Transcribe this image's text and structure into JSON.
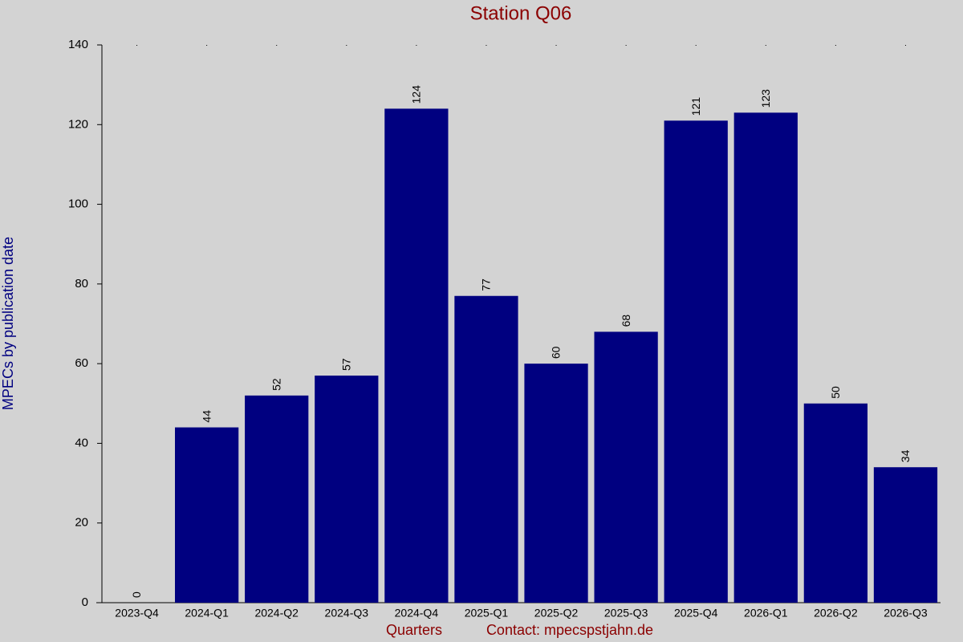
{
  "chart_data": {
    "type": "bar",
    "title": "Station Q06",
    "xlabel": "Quarters",
    "ylabel": "MPECs by publication date",
    "annotation": "Contact: mpecspstjahn.de",
    "categories": [
      "2023-Q4",
      "2024-Q1",
      "2024-Q2",
      "2024-Q3",
      "2024-Q4",
      "2025-Q1",
      "2025-Q2",
      "2025-Q3",
      "2025-Q4",
      "2026-Q1",
      "2026-Q2",
      "2026-Q3"
    ],
    "values": [
      0,
      44,
      52,
      57,
      124,
      77,
      60,
      68,
      121,
      123,
      50,
      34
    ],
    "color": "#000080",
    "ylim": [
      0,
      140
    ],
    "yticks": [
      0,
      20,
      40,
      60,
      80,
      100,
      120,
      140
    ],
    "data_labels": true,
    "grid": false
  }
}
